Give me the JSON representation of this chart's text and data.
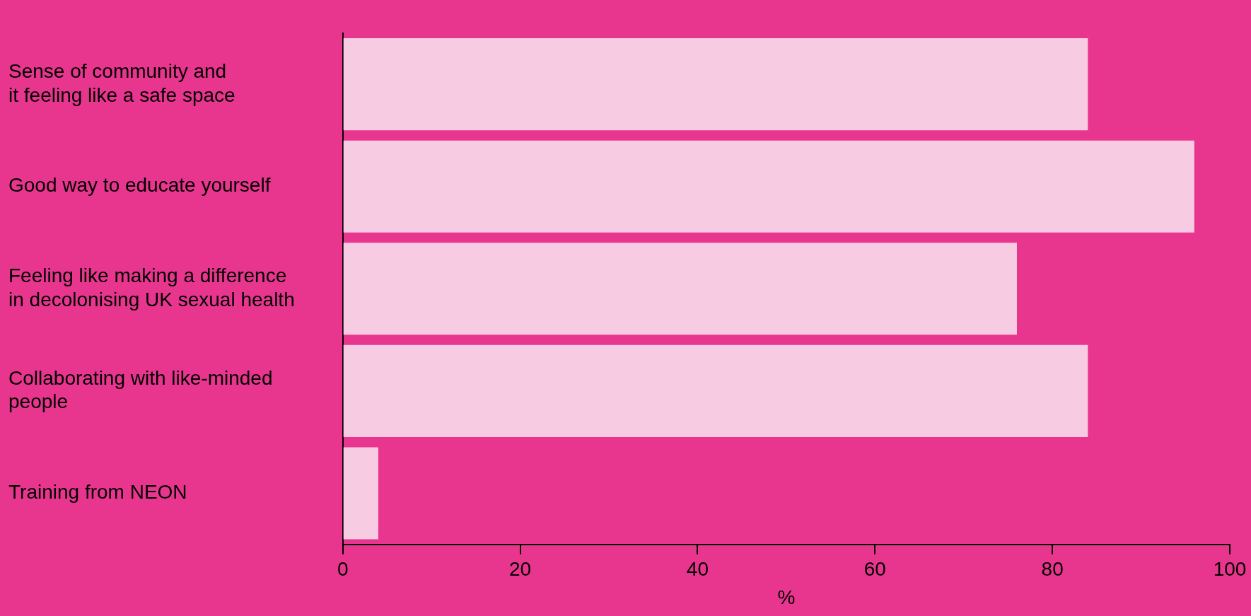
{
  "chart_data": {
    "type": "bar",
    "orientation": "horizontal",
    "categories": [
      "Sense of community and\nit feeling like a safe space",
      "Good way to educate yourself",
      "Feeling like making a difference\nin decolonising UK sexual health",
      "Collaborating with like-minded\npeople",
      "Training from NEON"
    ],
    "values": [
      84,
      96,
      76,
      84,
      4
    ],
    "color": "#f7cce3",
    "xlabel": "%",
    "xlim": [
      0,
      100
    ],
    "xticks": [
      0,
      20,
      40,
      60,
      80,
      100
    ],
    "legend": false
  }
}
